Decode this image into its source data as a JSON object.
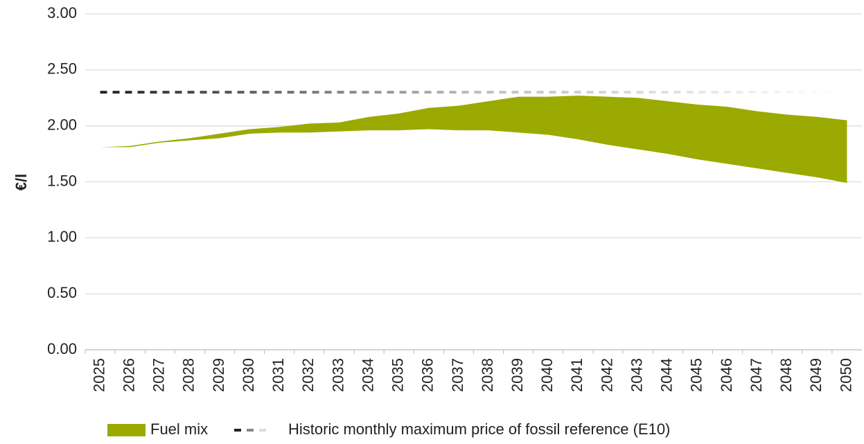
{
  "chart_data": {
    "type": "area-band",
    "ylabel": "€/l",
    "categories": [
      "2025",
      "2026",
      "2027",
      "2028",
      "2029",
      "2030",
      "2031",
      "2032",
      "2033",
      "2034",
      "2035",
      "2036",
      "2037",
      "2038",
      "2039",
      "2040",
      "2041",
      "2042",
      "2043",
      "2044",
      "2045",
      "2046",
      "2047",
      "2048",
      "2049",
      "2050"
    ],
    "series": [
      {
        "name": "Fuel mix",
        "color": "#9aaa00",
        "upper": [
          1.81,
          1.82,
          1.86,
          1.89,
          1.93,
          1.97,
          1.99,
          2.02,
          2.03,
          2.08,
          2.11,
          2.16,
          2.18,
          2.22,
          2.26,
          2.26,
          2.27,
          2.26,
          2.25,
          2.22,
          2.19,
          2.17,
          2.13,
          2.1,
          2.08,
          2.05
        ],
        "lower": [
          1.81,
          1.81,
          1.85,
          1.87,
          1.89,
          1.93,
          1.94,
          1.94,
          1.95,
          1.96,
          1.96,
          1.97,
          1.96,
          1.96,
          1.94,
          1.92,
          1.88,
          1.83,
          1.79,
          1.75,
          1.7,
          1.66,
          1.62,
          1.58,
          1.54,
          1.49
        ]
      },
      {
        "name": "Historic monthly maximum price of fossil reference (E10)",
        "color": "#333333",
        "dashed": true,
        "values": [
          2.3,
          2.3,
          2.3,
          2.3,
          2.3,
          2.3,
          2.3,
          2.3,
          2.3,
          2.3,
          2.3,
          2.3,
          2.3,
          2.3,
          2.3,
          2.3,
          2.3,
          2.3,
          2.3,
          2.3,
          2.3,
          2.3,
          2.3,
          2.3,
          2.3,
          2.3
        ]
      }
    ],
    "ylim": [
      0,
      3
    ],
    "yticks": [
      {
        "value": 0,
        "label": "0.00"
      },
      {
        "value": 0.5,
        "label": "0.50"
      },
      {
        "value": 1,
        "label": "1.00"
      },
      {
        "value": 1.5,
        "label": "1.50"
      },
      {
        "value": 2,
        "label": "2.00"
      },
      {
        "value": 2.5,
        "label": "2.50"
      },
      {
        "value": 3,
        "label": "3.00"
      }
    ],
    "grid": true
  }
}
